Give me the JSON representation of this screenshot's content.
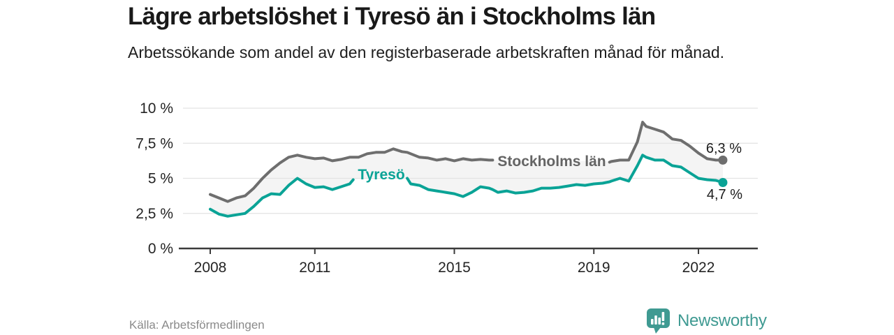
{
  "header": {
    "title": "Lägre arbetslöshet i Tyresö än i Stockholms län",
    "subtitle": "Arbetssökande som andel av den registerbaserade arbetskraften månad för månad."
  },
  "footer": {
    "source": "Källa: Arbetsförmedlingen",
    "brand": {
      "name": "Newsworthy",
      "icon": "newsworthy-chart-bubble-icon"
    }
  },
  "colors": {
    "accent_teal": "#0AA396",
    "line_gray": "#6E6E6E",
    "series_label_gray": "#646464",
    "band_fill": "#F4F4F4",
    "grid": "#E3E3E3",
    "axis": "#3B3B3B",
    "text_dark": "#1C1C1C",
    "text_muted": "#8A8A8A",
    "brand_teal": "#3F9A92"
  },
  "chart_data": {
    "type": "line",
    "title": "Lägre arbetslöshet i Tyresö än i Stockholms län",
    "subtitle": "Arbetssökande som andel av den registerbaserade arbetskraften månad för månad.",
    "xlabel": "",
    "ylabel": "",
    "grid": "horizontal",
    "legend_position": "inline-on-lines",
    "band_fill_between_series": true,
    "ylim": [
      0,
      10
    ],
    "xlim": [
      2007.2,
      2023.5
    ],
    "y_ticks": [
      0,
      2.5,
      5,
      7.5,
      10
    ],
    "y_tick_labels": [
      "0 %",
      "2,5 %",
      "5 %",
      "7,5 %",
      "10 %"
    ],
    "x_ticks": [
      2008,
      2011,
      2015,
      2019,
      2022
    ],
    "x_tick_labels": [
      "2008",
      "2011",
      "2015",
      "2019",
      "2022"
    ],
    "x_unit": "year (decimal; monthly series read at ~quarterly resolution)",
    "y_unit": "percent",
    "x": [
      2008.0,
      2008.25,
      2008.5,
      2008.75,
      2009.0,
      2009.25,
      2009.5,
      2009.75,
      2010.0,
      2010.25,
      2010.5,
      2010.75,
      2011.0,
      2011.25,
      2011.5,
      2011.75,
      2012.0,
      2012.1,
      2012.25,
      2012.5,
      2012.75,
      2013.0,
      2013.25,
      2013.5,
      2013.65,
      2013.75,
      2014.0,
      2014.25,
      2014.5,
      2014.75,
      2015.0,
      2015.25,
      2015.5,
      2015.75,
      2016.0,
      2016.1,
      2016.25,
      2016.5,
      2016.75,
      2017.0,
      2017.25,
      2017.5,
      2017.75,
      2018.0,
      2018.25,
      2018.5,
      2018.75,
      2019.0,
      2019.25,
      2019.45,
      2019.5,
      2019.75,
      2020.0,
      2020.25,
      2020.4,
      2020.5,
      2020.75,
      2021.0,
      2021.25,
      2021.5,
      2021.75,
      2022.0,
      2022.25,
      2022.5,
      2022.7
    ],
    "series": [
      {
        "name": "Stockholms län",
        "end_label": "6,3 %",
        "end_value": 6.3,
        "values": [
          3.85,
          3.6,
          3.35,
          3.6,
          3.75,
          4.3,
          5.0,
          5.6,
          6.1,
          6.5,
          6.65,
          6.5,
          6.4,
          6.45,
          6.25,
          6.35,
          6.5,
          6.5,
          6.5,
          6.75,
          6.85,
          6.85,
          7.1,
          6.9,
          6.85,
          6.75,
          6.5,
          6.45,
          6.3,
          6.4,
          6.25,
          6.4,
          6.3,
          6.35,
          6.3,
          6.3,
          6.3,
          6.25,
          6.2,
          6.2,
          6.15,
          6.15,
          6.2,
          6.2,
          6.15,
          6.2,
          6.25,
          6.25,
          6.3,
          6.15,
          6.2,
          6.3,
          6.3,
          7.6,
          9.0,
          8.7,
          8.5,
          8.3,
          7.8,
          7.7,
          7.3,
          6.8,
          6.4,
          6.3,
          6.3
        ]
      },
      {
        "name": "Tyresö",
        "end_label": "4,7 %",
        "end_value": 4.7,
        "values": [
          2.8,
          2.45,
          2.3,
          2.4,
          2.5,
          3.0,
          3.6,
          3.9,
          3.85,
          4.5,
          5.0,
          4.6,
          4.35,
          4.4,
          4.2,
          4.4,
          4.6,
          4.9,
          4.95,
          5.0,
          5.1,
          5.15,
          5.1,
          5.0,
          5.0,
          4.6,
          4.5,
          4.2,
          4.1,
          4.0,
          3.9,
          3.7,
          4.0,
          4.4,
          4.3,
          4.2,
          4.0,
          4.1,
          3.95,
          4.0,
          4.1,
          4.3,
          4.3,
          4.35,
          4.45,
          4.55,
          4.5,
          4.6,
          4.65,
          4.75,
          4.8,
          5.0,
          4.8,
          5.9,
          6.65,
          6.5,
          6.3,
          6.3,
          5.9,
          5.8,
          5.4,
          5.0,
          4.9,
          4.85,
          4.7
        ]
      }
    ]
  }
}
